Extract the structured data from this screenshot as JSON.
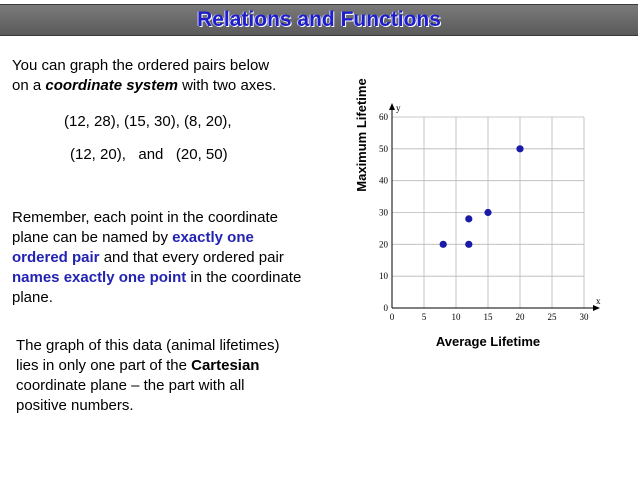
{
  "title": "Relations and Functions",
  "intro": {
    "line1": "You can graph the ordered pairs below",
    "line2_a": "on a ",
    "line2_b": "coordinate system",
    "line2_c": " with two axes."
  },
  "pairs": {
    "line1": "(12, 28), (15, 30), (8, 20),",
    "line2": "(12, 20),   and   (20, 50)"
  },
  "remember": {
    "l1": "Remember, each point in the coordinate",
    "l2_a": "plane can be named by ",
    "l2_b": "exactly one",
    "l3_a": "ordered pair",
    "l3_b": " and that every ordered pair",
    "l4_a": "names exactly one point",
    "l4_b": " in the coordinate",
    "l5": "plane."
  },
  "graph_note": {
    "l1": "The graph of this data (animal lifetimes)",
    "l2_a": "lies in only one part of the ",
    "l2_b": "Cartesian",
    "l3": "coordinate plane – the part with all",
    "l4": "positive numbers."
  },
  "colors": {
    "accent": "#2222b3",
    "point": "#1a1aa8"
  },
  "chart_data": {
    "type": "scatter",
    "xlabel": "Average Lifetime",
    "ylabel": "Maximum Lifetime",
    "x_axis_letter": "x",
    "y_axis_letter": "y",
    "xlim": [
      0,
      30
    ],
    "ylim": [
      0,
      60
    ],
    "xticks": [
      0,
      5,
      10,
      15,
      20,
      25,
      30
    ],
    "yticks": [
      0,
      10,
      20,
      30,
      40,
      50,
      60
    ],
    "grid": true,
    "points": [
      {
        "x": 12,
        "y": 28
      },
      {
        "x": 15,
        "y": 30
      },
      {
        "x": 8,
        "y": 20
      },
      {
        "x": 12,
        "y": 20
      },
      {
        "x": 20,
        "y": 50
      }
    ]
  }
}
